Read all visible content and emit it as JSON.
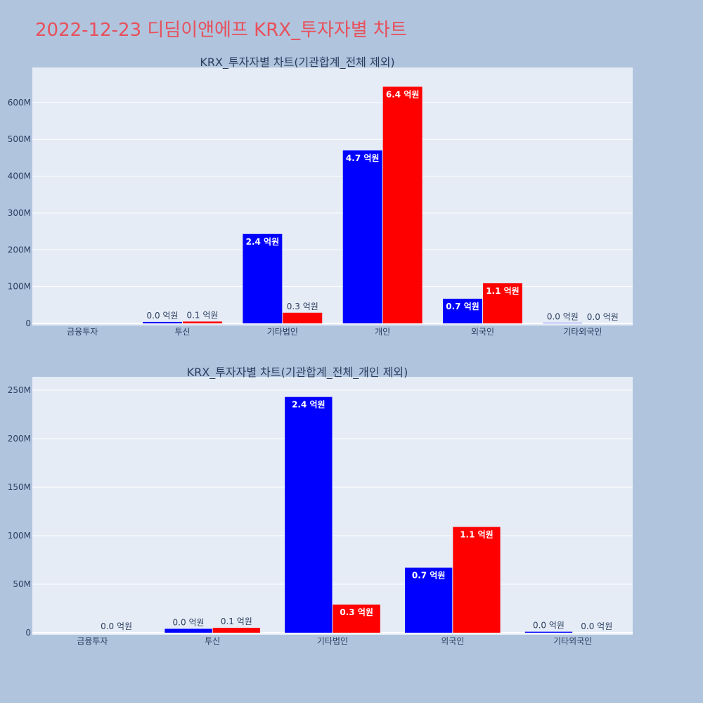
{
  "page": {
    "title": "2022-12-23 디딤이앤에프 KRX_투자자별 차트"
  },
  "colors": {
    "series_1": "#0000ff",
    "series_2": "#ff0000",
    "plot_bg": "#e5ecf6",
    "page_bg": "#b0c4de",
    "title": "#e8505b"
  },
  "chart_data": [
    {
      "type": "bar",
      "title": "KRX_투자자별 차트(기관합계_전체 제외)",
      "categories": [
        "금융투자",
        "투신",
        "기타법인",
        "개인",
        "외국인",
        "기타외국인"
      ],
      "ylim": [
        0,
        680000000
      ],
      "yticks": [
        0,
        100000000,
        200000000,
        300000000,
        400000000,
        500000000,
        600000000
      ],
      "ytick_labels": [
        "0",
        "100M",
        "200M",
        "300M",
        "400M",
        "500M",
        "600M"
      ],
      "grid": true,
      "series": [
        {
          "values": [
            0,
            4000000,
            243000000,
            470000000,
            67000000,
            1000000
          ],
          "labels": [
            "",
            "0.0 억원",
            "2.4 억원",
            "4.7 억원",
            "0.7 억원",
            "0.0 억원"
          ]
        },
        {
          "values": [
            0,
            5000000,
            29000000,
            643000000,
            109000000,
            0
          ],
          "labels": [
            "",
            "0.1 억원",
            "0.3 억원",
            "6.4 억원",
            "1.1 억원",
            "0.0 억원"
          ]
        }
      ]
    },
    {
      "type": "bar",
      "title": "KRX_투자자별 차트(기관합계_전체_개인 제외)",
      "categories": [
        "금융투자",
        "투신",
        "기타법인",
        "외국인",
        "기타외국인"
      ],
      "ylim": [
        0,
        258000000
      ],
      "yticks": [
        0,
        50000000,
        100000000,
        150000000,
        200000000,
        250000000
      ],
      "ytick_labels": [
        "0",
        "50M",
        "100M",
        "150M",
        "200M",
        "250M"
      ],
      "grid": true,
      "series": [
        {
          "values": [
            0,
            4000000,
            243000000,
            67000000,
            1000000
          ],
          "labels": [
            "",
            "0.0 억원",
            "2.4 억원",
            "0.7 억원",
            "0.0 억원"
          ]
        },
        {
          "values": [
            0,
            5000000,
            29000000,
            109000000,
            0
          ],
          "labels": [
            "0.0 억원",
            "0.1 억원",
            "0.3 억원",
            "1.1 억원",
            "0.0 억원"
          ]
        }
      ]
    }
  ]
}
